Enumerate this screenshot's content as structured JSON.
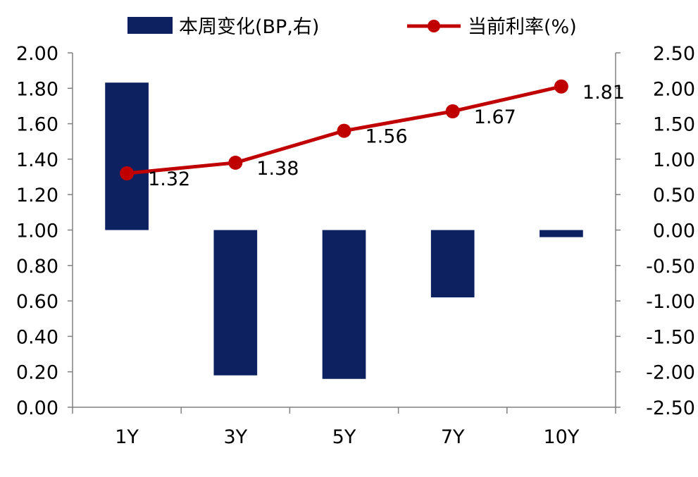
{
  "chart_data": {
    "type": "bar+line",
    "categories": [
      "1Y",
      "3Y",
      "5Y",
      "7Y",
      "10Y"
    ],
    "series": [
      {
        "name": "本周变化(BP,右)",
        "type": "bar",
        "axis": "right",
        "color": "#0d2160",
        "values": [
          2.08,
          -2.05,
          -2.1,
          -0.95,
          -0.1
        ]
      },
      {
        "name": "当前利率(%)",
        "type": "line",
        "axis": "left",
        "color": "#c00000",
        "values": [
          1.32,
          1.38,
          1.56,
          1.67,
          1.81
        ],
        "labels": [
          "1.32",
          "1.38",
          "1.56",
          "1.67",
          "1.81"
        ]
      }
    ],
    "y_left": {
      "min": 0,
      "max": 2.0,
      "ticks": [
        "0.00",
        "0.20",
        "0.40",
        "0.60",
        "0.80",
        "1.00",
        "1.20",
        "1.40",
        "1.60",
        "1.80",
        "2.00"
      ]
    },
    "y_right": {
      "min": -2.5,
      "max": 2.5,
      "ticks": [
        "-2.50",
        "-2.00",
        "-1.50",
        "-1.00",
        "-0.50",
        "0.00",
        "0.50",
        "1.00",
        "1.50",
        "2.00",
        "2.50"
      ]
    },
    "legend": [
      "本周变化(BP,右)",
      "当前利率(%)"
    ],
    "legend_position": "top",
    "grid": false
  }
}
